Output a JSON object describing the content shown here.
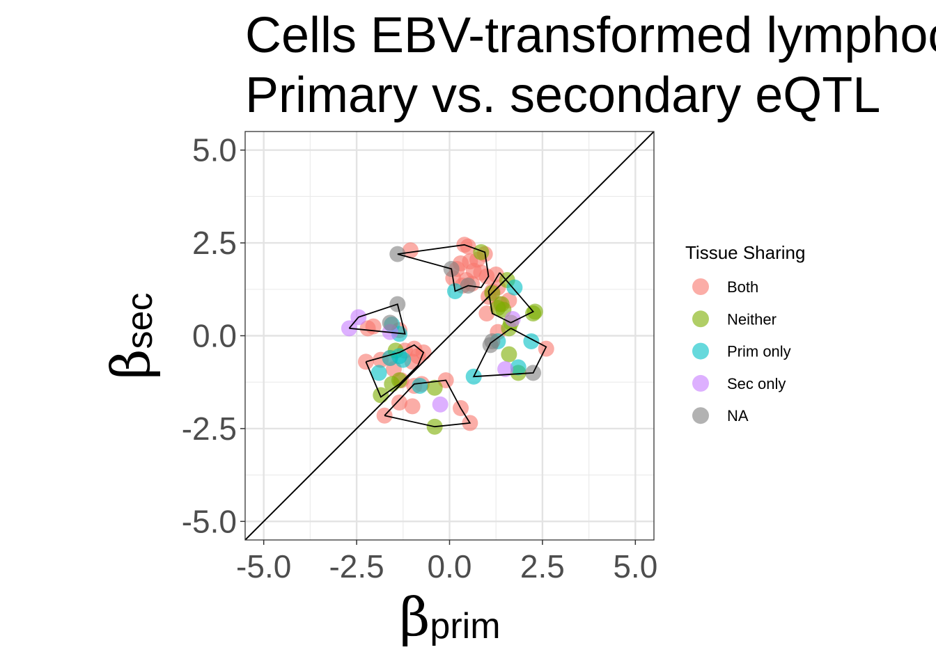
{
  "chart_data": {
    "type": "scatter",
    "title_lines": [
      "Cells EBV-transformed lymphocytes",
      "Primary vs. secondary eQTL"
    ],
    "xlabel": {
      "symbol": "β",
      "subscript": "prim"
    },
    "ylabel": {
      "symbol": "β",
      "subscript": "sec"
    },
    "xlim": [
      -5.5,
      5.5
    ],
    "ylim": [
      -5.5,
      5.5
    ],
    "x_ticks": [
      -5.0,
      -2.5,
      0.0,
      2.5,
      5.0
    ],
    "y_ticks": [
      -5.0,
      -2.5,
      0.0,
      2.5,
      5.0
    ],
    "x_tick_labels": [
      "-5.0",
      "-2.5",
      "0.0",
      "2.5",
      "5.0"
    ],
    "y_tick_labels": [
      "-5.0",
      "-2.5",
      "0.0",
      "2.5",
      "5.0"
    ],
    "grid": true,
    "reference_line": "y = x",
    "legend": {
      "title": "Tissue Sharing",
      "position": "right",
      "entries": [
        {
          "label": "Both",
          "color": "#F8766D"
        },
        {
          "label": "Neither",
          "color": "#7CAE00"
        },
        {
          "label": "Prim only",
          "color": "#00BFC4"
        },
        {
          "label": "Sec only",
          "color": "#C77CFF"
        },
        {
          "label": "NA",
          "color": "#7F7F7F"
        }
      ]
    },
    "series": [
      {
        "name": "Both",
        "color": "#F8766D",
        "points": [
          [
            -1.05,
            2.3
          ],
          [
            0.4,
            2.45
          ],
          [
            0.5,
            2.4
          ],
          [
            0.95,
            2.2
          ],
          [
            0.55,
            2.0
          ],
          [
            0.3,
            1.95
          ],
          [
            0.75,
            2.05
          ],
          [
            0.2,
            1.8
          ],
          [
            0.65,
            1.75
          ],
          [
            0.85,
            1.7
          ],
          [
            1.0,
            1.6
          ],
          [
            0.1,
            1.55
          ],
          [
            0.45,
            1.5
          ],
          [
            1.25,
            1.65
          ],
          [
            0.6,
            1.4
          ],
          [
            1.3,
            1.3
          ],
          [
            1.15,
            1.2
          ],
          [
            0.35,
            1.35
          ],
          [
            1.05,
            1.05
          ],
          [
            1.6,
            0.95
          ],
          [
            1.35,
            0.85
          ],
          [
            1.0,
            0.6
          ],
          [
            1.3,
            0.1
          ],
          [
            2.6,
            -0.35
          ],
          [
            -2.2,
            0.2
          ],
          [
            -2.05,
            0.25
          ],
          [
            -1.35,
            0.15
          ],
          [
            -2.25,
            -0.7
          ],
          [
            -1.85,
            -0.65
          ],
          [
            -1.6,
            -0.6
          ],
          [
            -1.2,
            -0.4
          ],
          [
            -0.95,
            -0.35
          ],
          [
            -0.85,
            -0.55
          ],
          [
            -0.7,
            -0.45
          ],
          [
            -1.0,
            -0.7
          ],
          [
            -1.5,
            -0.9
          ],
          [
            -1.3,
            -1.2
          ],
          [
            -0.75,
            -1.3
          ],
          [
            -0.95,
            -1.35
          ],
          [
            -0.1,
            -1.2
          ],
          [
            -1.35,
            -1.8
          ],
          [
            -1.0,
            -1.9
          ],
          [
            -1.75,
            -2.15
          ],
          [
            0.3,
            -1.95
          ],
          [
            0.55,
            -2.35
          ]
        ]
      },
      {
        "name": "Neither",
        "color": "#7CAE00",
        "points": [
          [
            0.85,
            2.25
          ],
          [
            1.55,
            1.5
          ],
          [
            1.15,
            1.15
          ],
          [
            1.4,
            0.85
          ],
          [
            1.3,
            0.75
          ],
          [
            1.45,
            0.7
          ],
          [
            1.65,
            0.35
          ],
          [
            1.6,
            0.2
          ],
          [
            2.3,
            0.65
          ],
          [
            2.25,
            0.6
          ],
          [
            1.6,
            -0.5
          ],
          [
            1.85,
            -1.0
          ],
          [
            -1.45,
            -0.4
          ],
          [
            -1.35,
            -1.2
          ],
          [
            -1.55,
            -1.3
          ],
          [
            -0.4,
            -1.4
          ],
          [
            -1.85,
            -1.6
          ],
          [
            -0.4,
            -2.45
          ]
        ]
      },
      {
        "name": "Prim only",
        "color": "#00BFC4",
        "points": [
          [
            0.15,
            1.2
          ],
          [
            1.75,
            1.3
          ],
          [
            1.3,
            -0.15
          ],
          [
            2.2,
            -0.15
          ],
          [
            1.85,
            -0.85
          ],
          [
            0.65,
            -1.1
          ],
          [
            -1.55,
            0.3
          ],
          [
            -1.35,
            0.05
          ],
          [
            -1.35,
            -0.55
          ],
          [
            -1.25,
            -0.65
          ],
          [
            -1.9,
            -1.0
          ],
          [
            -0.8,
            -1.35
          ],
          [
            -1.6,
            -0.6
          ]
        ]
      },
      {
        "name": "Sec only",
        "color": "#C77CFF",
        "points": [
          [
            -2.7,
            0.2
          ],
          [
            -2.45,
            0.5
          ],
          [
            -1.6,
            0.1
          ],
          [
            1.7,
            0.45
          ],
          [
            1.5,
            -0.9
          ],
          [
            -0.25,
            -1.85
          ]
        ]
      },
      {
        "name": "NA",
        "color": "#7F7F7F",
        "points": [
          [
            -1.4,
            2.2
          ],
          [
            0.05,
            1.8
          ],
          [
            0.5,
            1.35
          ],
          [
            -1.4,
            0.85
          ],
          [
            -1.6,
            0.35
          ],
          [
            1.15,
            -0.15
          ],
          [
            1.1,
            -0.25
          ],
          [
            2.25,
            -1.0
          ]
        ]
      }
    ],
    "hull_polygons": [
      [
        [
          -1.4,
          2.2
        ],
        [
          0.4,
          2.45
        ],
        [
          0.95,
          2.25
        ],
        [
          1.05,
          1.6
        ],
        [
          0.85,
          1.3
        ],
        [
          0.5,
          1.35
        ],
        [
          0.15,
          1.2
        ],
        [
          0.05,
          1.8
        ],
        [
          -1.4,
          2.2
        ]
      ],
      [
        [
          -2.7,
          0.2
        ],
        [
          -2.45,
          0.5
        ],
        [
          -1.4,
          0.85
        ],
        [
          -1.2,
          0.05
        ],
        [
          -2.7,
          0.2
        ]
      ],
      [
        [
          1.35,
          1.7
        ],
        [
          2.25,
          0.65
        ],
        [
          1.65,
          0.35
        ],
        [
          1.15,
          0.6
        ],
        [
          1.05,
          1.2
        ],
        [
          1.35,
          1.7
        ]
      ],
      [
        [
          -2.25,
          -0.7
        ],
        [
          -1.35,
          -0.45
        ],
        [
          -0.95,
          -0.25
        ],
        [
          -0.7,
          -0.45
        ],
        [
          -0.85,
          -0.8
        ],
        [
          -1.35,
          -1.3
        ],
        [
          -1.85,
          -1.65
        ],
        [
          -2.25,
          -0.7
        ]
      ],
      [
        [
          1.65,
          0.2
        ],
        [
          2.6,
          -0.3
        ],
        [
          2.25,
          -1.0
        ],
        [
          0.65,
          -1.1
        ],
        [
          1.1,
          -0.2
        ],
        [
          1.65,
          0.2
        ]
      ],
      [
        [
          -1.75,
          -2.15
        ],
        [
          -0.95,
          -1.3
        ],
        [
          -0.1,
          -1.2
        ],
        [
          0.3,
          -1.95
        ],
        [
          0.55,
          -2.35
        ],
        [
          -0.4,
          -2.45
        ],
        [
          -1.75,
          -2.15
        ]
      ]
    ]
  }
}
